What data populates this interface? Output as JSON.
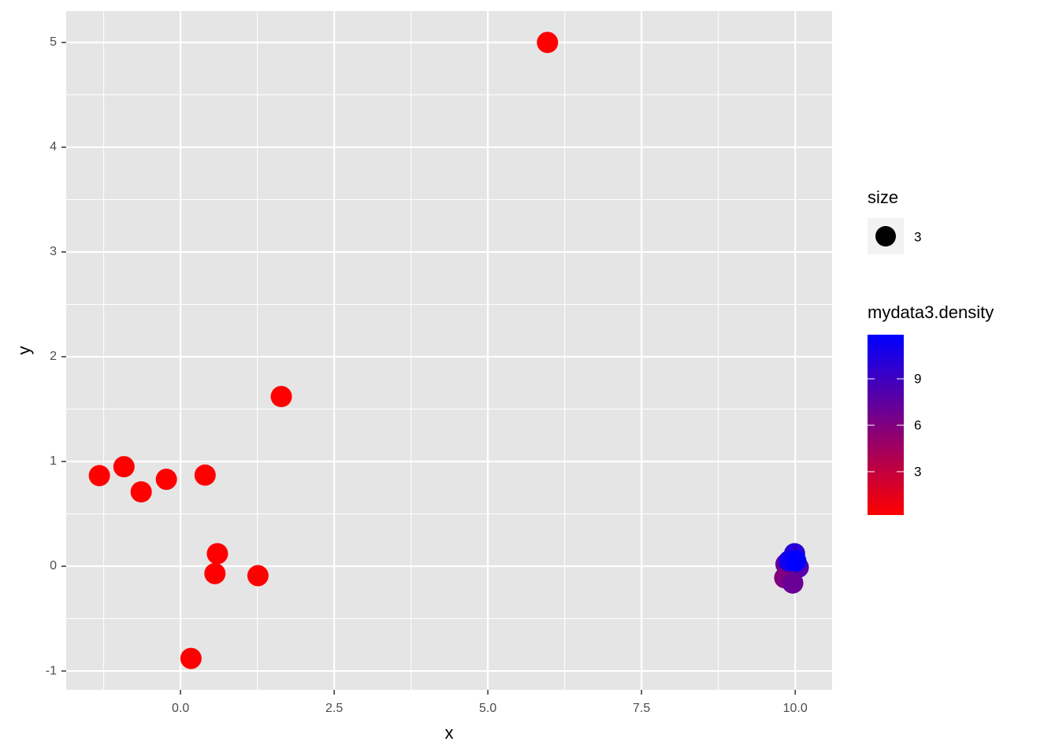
{
  "chart_data": {
    "type": "scatter",
    "x_label": "x",
    "y_label": "y",
    "x": [
      -1.32,
      -0.92,
      -0.64,
      -0.23,
      0.4,
      0.6,
      0.56,
      1.26,
      0.17,
      1.64,
      5.97,
      9.99,
      9.85,
      10.05,
      9.83,
      9.96,
      9.9,
      10.01
    ],
    "y": [
      0.865,
      0.95,
      0.71,
      0.83,
      0.87,
      0.12,
      -0.07,
      -0.09,
      -0.88,
      1.62,
      5.0,
      0.12,
      0.02,
      -0.01,
      -0.11,
      -0.16,
      0.05,
      0.05
    ],
    "density": [
      0.2,
      0.2,
      0.2,
      0.2,
      0.2,
      0.2,
      0.2,
      0.2,
      0.2,
      0.2,
      0.2,
      10,
      7,
      8,
      6,
      7,
      11,
      11.8
    ],
    "size": 3,
    "size_title": "size",
    "color_scale": {
      "title": "mydata3.density",
      "low": "#ff0000",
      "high": "#0000ff",
      "lim": [
        0.2,
        11.85
      ],
      "ticks": [
        3,
        6,
        9
      ]
    },
    "xlim": [
      -1.86,
      10.6
    ],
    "xticks": [
      {
        "value": 0,
        "label": "0.0"
      },
      2.5,
      {
        "value": 5,
        "label": "5.0"
      },
      7.5,
      {
        "value": 10,
        "label": "10.0"
      }
    ],
    "ylim": [
      -1.18,
      5.3
    ],
    "yticks": [
      -1,
      0,
      1,
      2,
      3,
      4,
      5
    ],
    "grid": true
  }
}
